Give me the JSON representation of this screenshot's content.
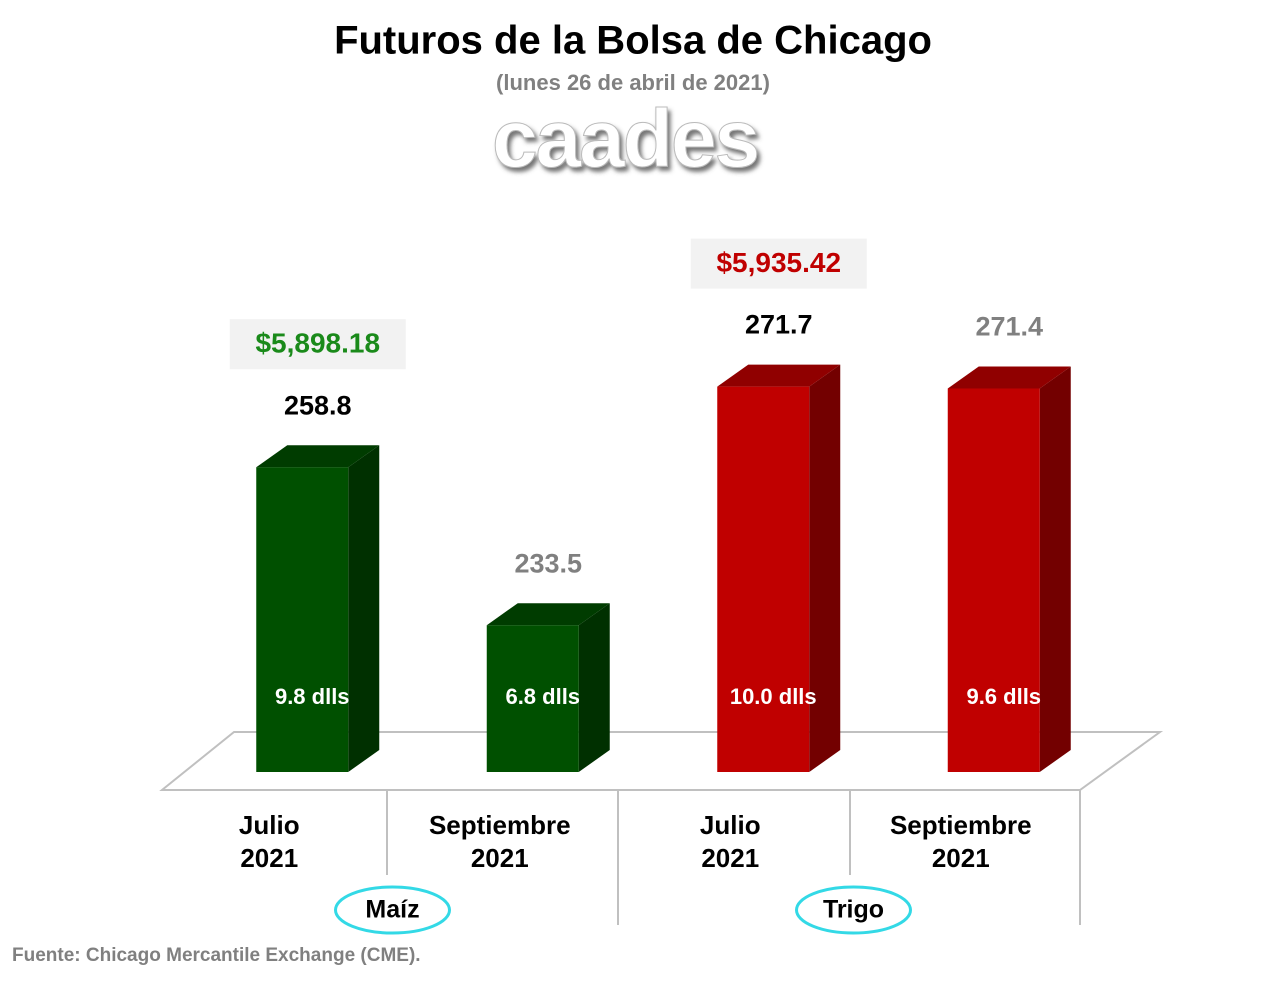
{
  "chart_data": {
    "type": "bar3d",
    "title": "Futuros de la Bolsa de Chicago",
    "subtitle": "(lunes 26 de abril de 2021)",
    "logo": "caades",
    "categories": [
      "Julio 2021",
      "Septiembre 2021",
      "Julio 2021",
      "Septiembre 2021"
    ],
    "values": [
      258.8,
      233.5,
      271.7,
      271.4
    ],
    "value_label_colors": [
      "#000000",
      "#808080",
      "#000000",
      "#808080"
    ],
    "colors": [
      "#005000",
      "#005000",
      "#c00000",
      "#c00000"
    ],
    "bar_notes": [
      "9.8 dlls",
      "6.8 dlls",
      "10.0 dlls",
      "9.6 dlls"
    ],
    "groups": [
      {
        "name": "Maíz",
        "note": "$5,898.18",
        "note_color": "#1a8a1a"
      },
      {
        "name": "Trigo",
        "note": "$5,935.42",
        "note_color": "#c00000"
      }
    ],
    "ylim": [
      210,
      275
    ],
    "source": "Fuente: Chicago Mercantile Exchange (CME)."
  }
}
